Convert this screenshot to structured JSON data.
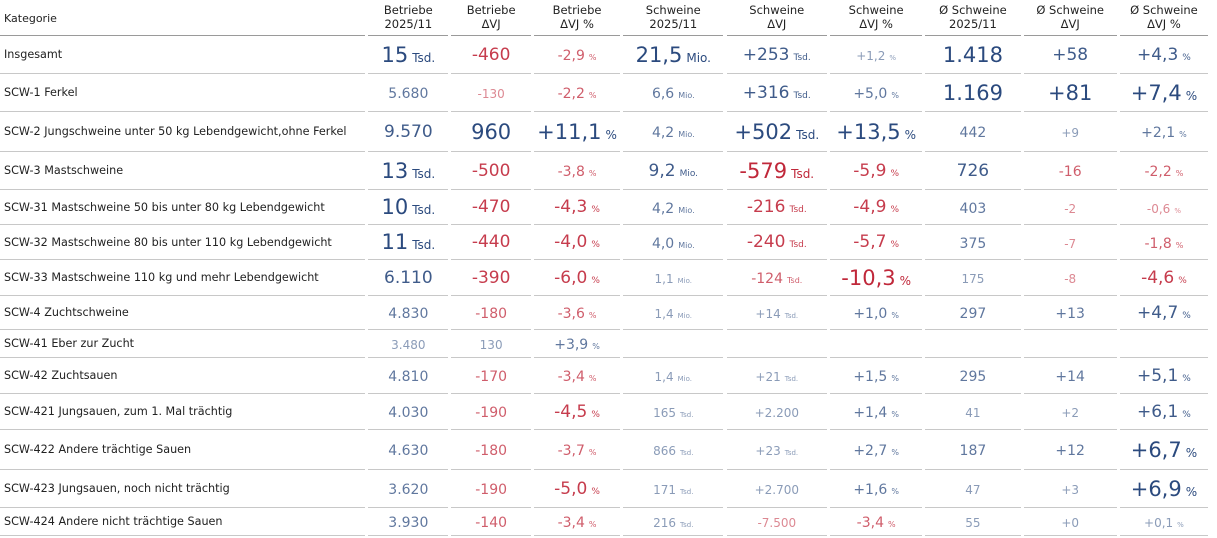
{
  "headers": {
    "kategorie": "Kategorie",
    "cols": [
      [
        "Betriebe",
        "2025/11"
      ],
      [
        "Betriebe",
        "ΔVJ"
      ],
      [
        "Betriebe",
        "ΔVJ %"
      ],
      [
        "Schweine",
        "2025/11"
      ],
      [
        "Schweine",
        "ΔVJ"
      ],
      [
        "Schweine",
        "ΔVJ %"
      ],
      [
        "Ø Schweine",
        "2025/11"
      ],
      [
        "Ø Schweine",
        "ΔVJ"
      ],
      [
        "Ø Schweine",
        "ΔVJ %"
      ]
    ]
  },
  "rows": [
    {
      "label": "Insgesamt",
      "h": 38,
      "cells": [
        {
          "v": "15",
          "u": "Tsd.",
          "s": 4,
          "c": "neu"
        },
        {
          "v": "-460",
          "s": 3,
          "c": "neg"
        },
        {
          "v": "-2,9",
          "u": "%",
          "s": 2,
          "c": "neg"
        },
        {
          "v": "21,5",
          "u": "Mio.",
          "s": 4,
          "c": "neu"
        },
        {
          "v": "+253",
          "u": "Tsd.",
          "s": 3,
          "c": "pos"
        },
        {
          "v": "+1,2",
          "u": "%",
          "s": 1,
          "c": "pos"
        },
        {
          "v": "1.418",
          "s": 4,
          "c": "neu"
        },
        {
          "v": "+58",
          "s": 3,
          "c": "pos"
        },
        {
          "v": "+4,3",
          "u": "%",
          "s": 3,
          "c": "pos"
        }
      ]
    },
    {
      "label": "SCW-1 Ferkel",
      "h": 38,
      "cells": [
        {
          "v": "5.680",
          "s": 2,
          "c": "neu"
        },
        {
          "v": "-130",
          "s": 1,
          "c": "neg"
        },
        {
          "v": "-2,2",
          "u": "%",
          "s": 2,
          "c": "neg"
        },
        {
          "v": "6,6",
          "u": "Mio.",
          "s": 2,
          "c": "neu"
        },
        {
          "v": "+316",
          "u": "Tsd.",
          "s": 3,
          "c": "pos"
        },
        {
          "v": "+5,0",
          "u": "%",
          "s": 2,
          "c": "pos"
        },
        {
          "v": "1.169",
          "s": 4,
          "c": "neu"
        },
        {
          "v": "+81",
          "s": 4,
          "c": "pos"
        },
        {
          "v": "+7,4",
          "u": "%",
          "s": 4,
          "c": "pos"
        }
      ]
    },
    {
      "label": "SCW-2 Jungschweine unter 50 kg Lebendgewicht,ohne Ferkel",
      "h": 40,
      "cells": [
        {
          "v": "9.570",
          "s": 3,
          "c": "neu"
        },
        {
          "v": "960",
          "s": 4,
          "c": "pos"
        },
        {
          "v": "+11,1",
          "u": "%",
          "s": 4,
          "c": "pos"
        },
        {
          "v": "4,2",
          "u": "Mio.",
          "s": 2,
          "c": "neu"
        },
        {
          "v": "+502",
          "u": "Tsd.",
          "s": 4,
          "c": "pos"
        },
        {
          "v": "+13,5",
          "u": "%",
          "s": 4,
          "c": "pos"
        },
        {
          "v": "442",
          "s": 2,
          "c": "neu"
        },
        {
          "v": "+9",
          "s": 1,
          "c": "pos"
        },
        {
          "v": "+2,1",
          "u": "%",
          "s": 2,
          "c": "pos"
        }
      ]
    },
    {
      "label": "SCW-3 Mastschweine",
      "h": 38,
      "cells": [
        {
          "v": "13",
          "u": "Tsd.",
          "s": 4,
          "c": "neu"
        },
        {
          "v": "-500",
          "s": 3,
          "c": "neg"
        },
        {
          "v": "-3,8",
          "u": "%",
          "s": 2,
          "c": "neg"
        },
        {
          "v": "9,2",
          "u": "Mio.",
          "s": 3,
          "c": "neu"
        },
        {
          "v": "-579",
          "u": "Tsd.",
          "s": 4,
          "c": "neg"
        },
        {
          "v": "-5,9",
          "u": "%",
          "s": 3,
          "c": "neg"
        },
        {
          "v": "726",
          "s": 3,
          "c": "neu"
        },
        {
          "v": "-16",
          "s": 2,
          "c": "neg"
        },
        {
          "v": "-2,2",
          "u": "%",
          "s": 2,
          "c": "neg"
        }
      ]
    },
    {
      "label": "SCW-31 Mastschweine 50 bis unter 80 kg Lebendgewicht",
      "h": 35,
      "cells": [
        {
          "v": "10",
          "u": "Tsd.",
          "s": 4,
          "c": "neu"
        },
        {
          "v": "-470",
          "s": 3,
          "c": "neg"
        },
        {
          "v": "-4,3",
          "u": "%",
          "s": 3,
          "c": "neg"
        },
        {
          "v": "4,2",
          "u": "Mio.",
          "s": 2,
          "c": "neu"
        },
        {
          "v": "-216",
          "u": "Tsd.",
          "s": 3,
          "c": "neg"
        },
        {
          "v": "-4,9",
          "u": "%",
          "s": 3,
          "c": "neg"
        },
        {
          "v": "403",
          "s": 2,
          "c": "neu"
        },
        {
          "v": "-2",
          "s": 1,
          "c": "neg"
        },
        {
          "v": "-0,6",
          "u": "%",
          "s": 1,
          "c": "neg"
        }
      ]
    },
    {
      "label": "SCW-32 Mastschweine 80 bis unter 110 kg Lebendgewicht",
      "h": 35,
      "cells": [
        {
          "v": "11",
          "u": "Tsd.",
          "s": 4,
          "c": "neu"
        },
        {
          "v": "-440",
          "s": 3,
          "c": "neg"
        },
        {
          "v": "-4,0",
          "u": "%",
          "s": 3,
          "c": "neg"
        },
        {
          "v": "4,0",
          "u": "Mio.",
          "s": 2,
          "c": "neu"
        },
        {
          "v": "-240",
          "u": "Tsd.",
          "s": 3,
          "c": "neg"
        },
        {
          "v": "-5,7",
          "u": "%",
          "s": 3,
          "c": "neg"
        },
        {
          "v": "375",
          "s": 2,
          "c": "neu"
        },
        {
          "v": "-7",
          "s": 1,
          "c": "neg"
        },
        {
          "v": "-1,8",
          "u": "%",
          "s": 2,
          "c": "neg"
        }
      ]
    },
    {
      "label": "SCW-33 Mastschweine 110 kg und mehr Lebendgewicht",
      "h": 36,
      "cells": [
        {
          "v": "6.110",
          "s": 3,
          "c": "neu"
        },
        {
          "v": "-390",
          "s": 3,
          "c": "neg"
        },
        {
          "v": "-6,0",
          "u": "%",
          "s": 3,
          "c": "neg"
        },
        {
          "v": "1,1",
          "u": "Mio.",
          "s": 1,
          "c": "neu"
        },
        {
          "v": "-124",
          "u": "Tsd.",
          "s": 2,
          "c": "neg"
        },
        {
          "v": "-10,3",
          "u": "%",
          "s": 4,
          "c": "neg"
        },
        {
          "v": "175",
          "s": 1,
          "c": "neu"
        },
        {
          "v": "-8",
          "s": 1,
          "c": "neg"
        },
        {
          "v": "-4,6",
          "u": "%",
          "s": 3,
          "c": "neg"
        }
      ]
    },
    {
      "label": "SCW-4 Zuchtschweine",
      "h": 34,
      "cells": [
        {
          "v": "4.830",
          "s": 2,
          "c": "neu"
        },
        {
          "v": "-180",
          "s": 2,
          "c": "neg"
        },
        {
          "v": "-3,6",
          "u": "%",
          "s": 2,
          "c": "neg"
        },
        {
          "v": "1,4",
          "u": "Mio.",
          "s": 1,
          "c": "neu"
        },
        {
          "v": "+14",
          "u": "Tsd.",
          "s": 1,
          "c": "pos"
        },
        {
          "v": "+1,0",
          "u": "%",
          "s": 2,
          "c": "pos"
        },
        {
          "v": "297",
          "s": 2,
          "c": "neu"
        },
        {
          "v": "+13",
          "s": 2,
          "c": "pos"
        },
        {
          "v": "+4,7",
          "u": "%",
          "s": 3,
          "c": "pos"
        }
      ]
    },
    {
      "label": "SCW-41 Eber zur Zucht",
      "h": 28,
      "cells": [
        {
          "v": "3.480",
          "s": 1,
          "c": "neu"
        },
        {
          "v": "130",
          "s": 1,
          "c": "pos"
        },
        {
          "v": "+3,9",
          "u": "%",
          "s": 2,
          "c": "pos"
        },
        {
          "v": "",
          "s": 1,
          "c": "neu"
        },
        {
          "v": "",
          "s": 1,
          "c": "neu"
        },
        {
          "v": "",
          "s": 1,
          "c": "neu"
        },
        {
          "v": "",
          "s": 1,
          "c": "neu"
        },
        {
          "v": "",
          "s": 1,
          "c": "neu"
        },
        {
          "v": "",
          "s": 1,
          "c": "neu"
        }
      ]
    },
    {
      "label": "SCW-42 Zuchtsauen",
      "h": 36,
      "cells": [
        {
          "v": "4.810",
          "s": 2,
          "c": "neu"
        },
        {
          "v": "-170",
          "s": 2,
          "c": "neg"
        },
        {
          "v": "-3,4",
          "u": "%",
          "s": 2,
          "c": "neg"
        },
        {
          "v": "1,4",
          "u": "Mio.",
          "s": 1,
          "c": "neu"
        },
        {
          "v": "+21",
          "u": "Tsd.",
          "s": 1,
          "c": "pos"
        },
        {
          "v": "+1,5",
          "u": "%",
          "s": 2,
          "c": "pos"
        },
        {
          "v": "295",
          "s": 2,
          "c": "neu"
        },
        {
          "v": "+14",
          "s": 2,
          "c": "pos"
        },
        {
          "v": "+5,1",
          "u": "%",
          "s": 3,
          "c": "pos"
        }
      ]
    },
    {
      "label": "SCW-421 Jungsauen, zum 1. Mal trächtig",
      "h": 36,
      "cells": [
        {
          "v": "4.030",
          "s": 2,
          "c": "neu"
        },
        {
          "v": "-190",
          "s": 2,
          "c": "neg"
        },
        {
          "v": "-4,5",
          "u": "%",
          "s": 3,
          "c": "neg"
        },
        {
          "v": "165",
          "u": "Tsd.",
          "s": 1,
          "c": "neu"
        },
        {
          "v": "+2.200",
          "s": 1,
          "c": "pos"
        },
        {
          "v": "+1,4",
          "u": "%",
          "s": 2,
          "c": "pos"
        },
        {
          "v": "41",
          "s": 1,
          "c": "neu"
        },
        {
          "v": "+2",
          "s": 1,
          "c": "pos"
        },
        {
          "v": "+6,1",
          "u": "%",
          "s": 3,
          "c": "pos"
        }
      ]
    },
    {
      "label": "SCW-422 Andere trächtige Sauen",
      "h": 40,
      "cells": [
        {
          "v": "4.630",
          "s": 2,
          "c": "neu"
        },
        {
          "v": "-180",
          "s": 2,
          "c": "neg"
        },
        {
          "v": "-3,7",
          "u": "%",
          "s": 2,
          "c": "neg"
        },
        {
          "v": "866",
          "u": "Tsd.",
          "s": 1,
          "c": "neu"
        },
        {
          "v": "+23",
          "u": "Tsd.",
          "s": 1,
          "c": "pos"
        },
        {
          "v": "+2,7",
          "u": "%",
          "s": 2,
          "c": "pos"
        },
        {
          "v": "187",
          "s": 2,
          "c": "neu"
        },
        {
          "v": "+12",
          "s": 2,
          "c": "pos"
        },
        {
          "v": "+6,7",
          "u": "%",
          "s": 4,
          "c": "pos"
        }
      ]
    },
    {
      "label": "SCW-423 Jungsauen, noch nicht trächtig",
      "h": 38,
      "cells": [
        {
          "v": "3.620",
          "s": 2,
          "c": "neu"
        },
        {
          "v": "-190",
          "s": 2,
          "c": "neg"
        },
        {
          "v": "-5,0",
          "u": "%",
          "s": 3,
          "c": "neg"
        },
        {
          "v": "171",
          "u": "Tsd.",
          "s": 1,
          "c": "neu"
        },
        {
          "v": "+2.700",
          "s": 1,
          "c": "pos"
        },
        {
          "v": "+1,6",
          "u": "%",
          "s": 2,
          "c": "pos"
        },
        {
          "v": "47",
          "s": 1,
          "c": "neu"
        },
        {
          "v": "+3",
          "s": 1,
          "c": "pos"
        },
        {
          "v": "+6,9",
          "u": "%",
          "s": 4,
          "c": "pos"
        }
      ]
    },
    {
      "label": "SCW-424 Andere nicht trächtige Sauen",
      "h": 28,
      "cells": [
        {
          "v": "3.930",
          "s": 2,
          "c": "neu"
        },
        {
          "v": "-140",
          "s": 2,
          "c": "neg"
        },
        {
          "v": "-3,4",
          "u": "%",
          "s": 2,
          "c": "neg"
        },
        {
          "v": "216",
          "u": "Tsd.",
          "s": 1,
          "c": "neu"
        },
        {
          "v": "-7.500",
          "s": 1,
          "c": "neg"
        },
        {
          "v": "-3,4",
          "u": "%",
          "s": 2,
          "c": "neg"
        },
        {
          "v": "55",
          "s": 1,
          "c": "neu"
        },
        {
          "v": "+0",
          "s": 1,
          "c": "pos"
        },
        {
          "v": "+0,1",
          "u": "%",
          "s": 1,
          "c": "pos"
        }
      ]
    }
  ]
}
